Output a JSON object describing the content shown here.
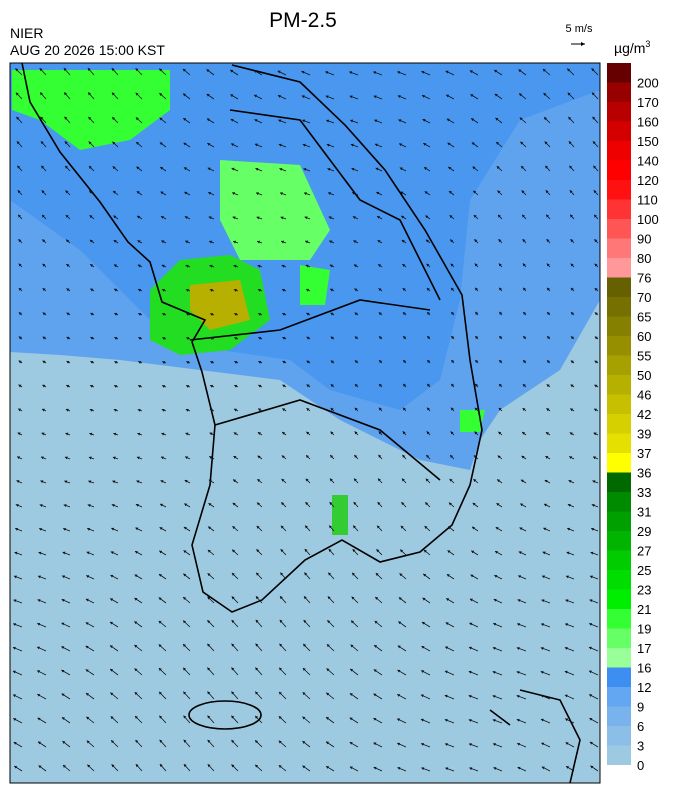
{
  "header": {
    "title": "PM-2.5",
    "source": "NIER",
    "datetime": "AUG 20 2026 15:00 KST"
  },
  "wind_scale": "5 m/s",
  "unit": {
    "base": "µg/m",
    "sup": "3"
  },
  "colorbar": {
    "labels": [
      0,
      3,
      6,
      9,
      12,
      16,
      17,
      19,
      21,
      23,
      25,
      27,
      29,
      31,
      33,
      36,
      37,
      39,
      42,
      46,
      50,
      55,
      60,
      65,
      70,
      76,
      80,
      90,
      100,
      110,
      120,
      140,
      150,
      160,
      170,
      200
    ],
    "colors": [
      "#9ecae1",
      "#8cbfe8",
      "#79b3ee",
      "#63a6f1",
      "#3c8ef0",
      "#99ff99",
      "#66ff66",
      "#33ff33",
      "#00ee00",
      "#00dd00",
      "#00cc00",
      "#00b400",
      "#00a000",
      "#008a00",
      "#006a00",
      "#ffff00",
      "#e6e000",
      "#d6d000",
      "#c6c000",
      "#b6b000",
      "#a6a000",
      "#969000",
      "#868000",
      "#767000",
      "#666000",
      "#ff9999",
      "#ff7777",
      "#ff5555",
      "#ff3333",
      "#ff1111",
      "#ff0000",
      "#ee0000",
      "#d40000",
      "#b80000",
      "#980000",
      "#660000"
    ]
  }
}
